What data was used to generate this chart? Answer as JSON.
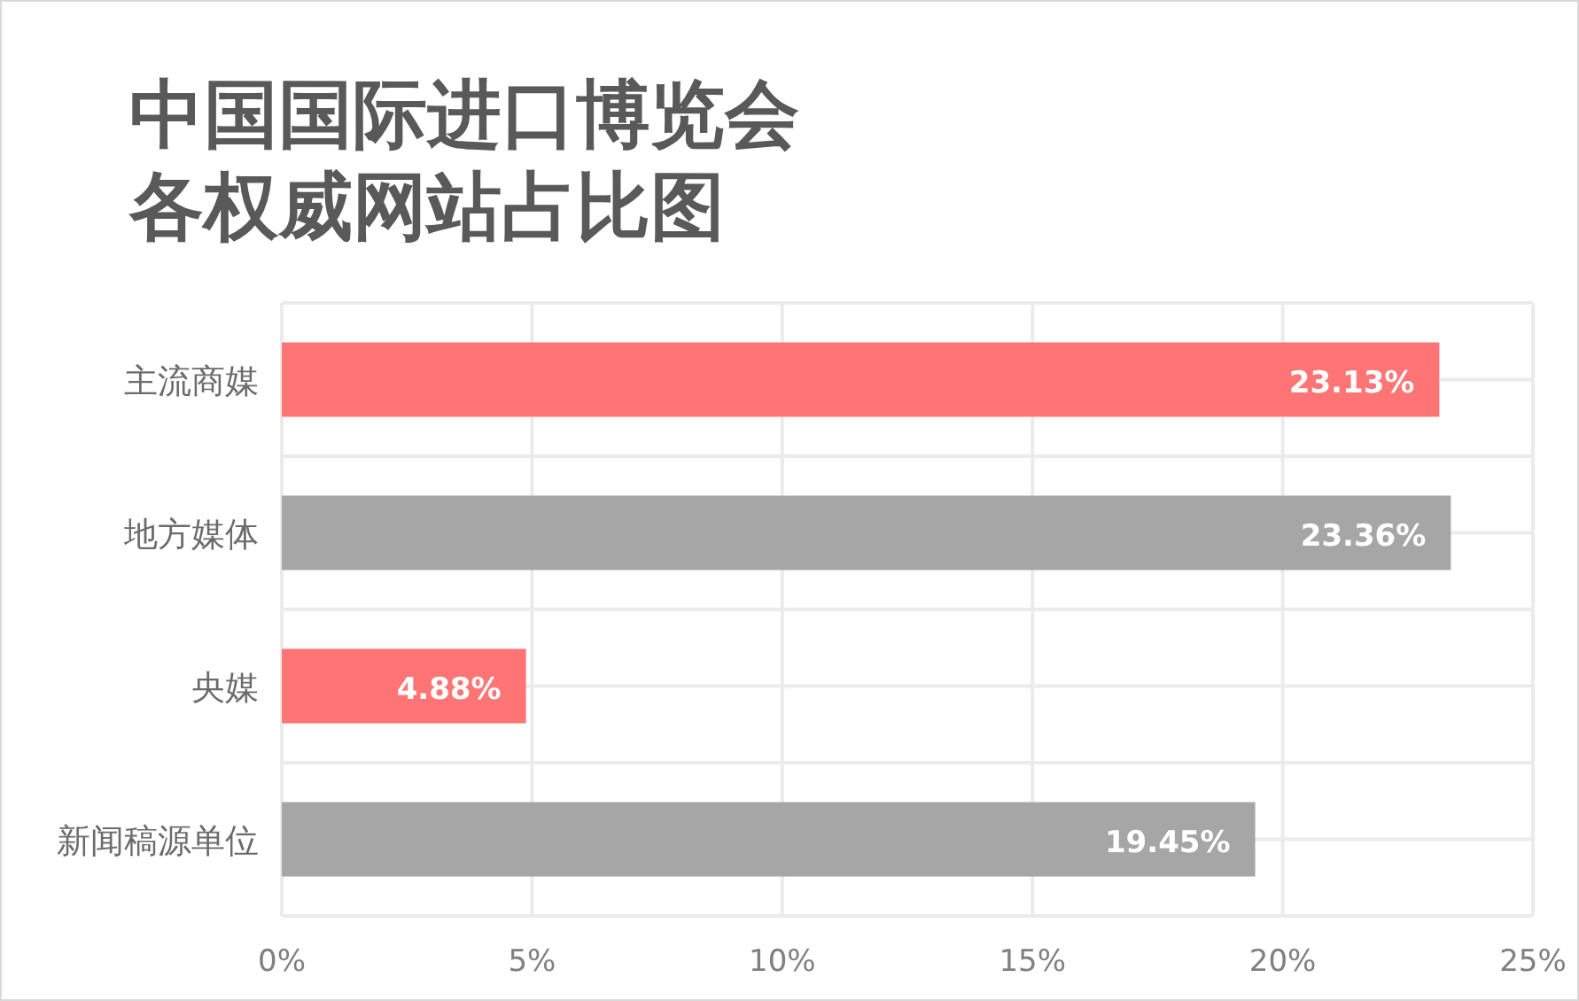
{
  "chart_data": {
    "type": "bar",
    "orientation": "horizontal",
    "title": "中国国际进口博览会各权威网站占比图",
    "categories": [
      "主流商媒",
      "地方媒体",
      "央媒",
      "新闻稿源单位"
    ],
    "values": [
      23.13,
      23.36,
      4.88,
      19.45
    ],
    "colors": [
      "#ff7575",
      "#a6a6a6",
      "#ff7575",
      "#a6a6a6"
    ],
    "value_labels": [
      "23.13%",
      "23.36%",
      "4.88%",
      "19.45%"
    ],
    "xlim": [
      0,
      25
    ],
    "xticks": [
      {
        "value": 0,
        "label": "0%"
      },
      {
        "value": 5,
        "label": "5%"
      },
      {
        "value": 10,
        "label": "10%"
      },
      {
        "value": 15,
        "label": "15%"
      },
      {
        "value": 20,
        "label": "20%"
      },
      {
        "value": 25,
        "label": "25%"
      }
    ],
    "grid": true
  }
}
